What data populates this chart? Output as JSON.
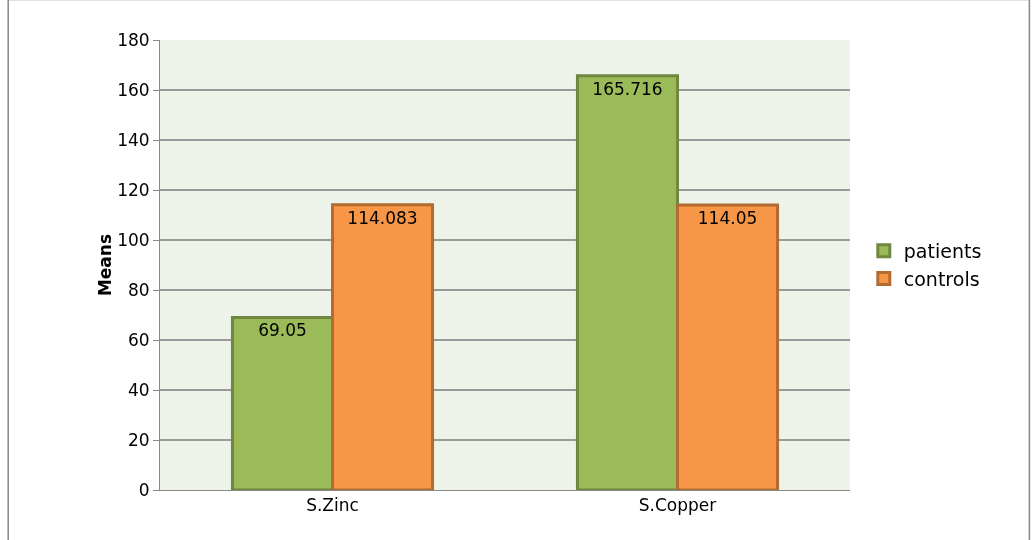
{
  "chart_data": {
    "type": "bar",
    "ylabel": "Means",
    "categories": [
      "S.Zinc",
      "S.Copper"
    ],
    "series": [
      {
        "name": "patients",
        "color": "#9bbb59",
        "values": [
          69.05,
          165.716
        ]
      },
      {
        "name": "controls",
        "color": "#f79646",
        "values": [
          114.083,
          114.05
        ]
      }
    ],
    "ylim": [
      0,
      180
    ],
    "yticks": [
      0,
      20,
      40,
      60,
      80,
      100,
      120,
      140,
      160,
      180
    ],
    "grid": "y",
    "legend": "right",
    "data_labels": true
  }
}
